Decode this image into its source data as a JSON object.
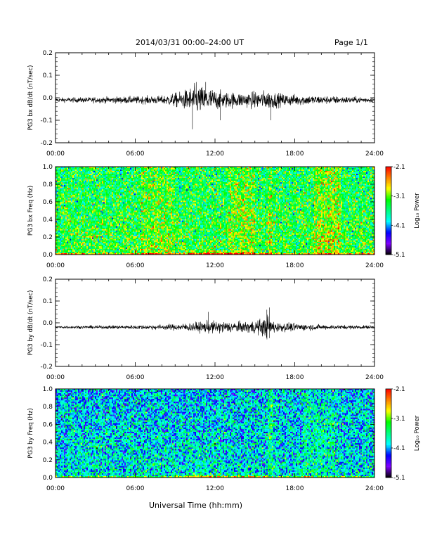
{
  "header": {
    "title": "2014/03/31  00:00–24:00 UT",
    "page": "Page 1/1"
  },
  "xlabel": "Universal Time (hh:mm)",
  "time_ticks": [
    "00:00",
    "06:00",
    "12:00",
    "18:00",
    "24:00"
  ],
  "colorbar": {
    "label": "Log₁₀ Power",
    "ticks": [
      "-2.1",
      "-3.1",
      "-4.1",
      "-5.1"
    ],
    "range": [
      -5.1,
      -2.1
    ],
    "colors": [
      "#000000",
      "#8000ff",
      "#0000ff",
      "#00ffff",
      "#00ff80",
      "#00ff00",
      "#ffff00",
      "#ff8000",
      "#ff0000"
    ]
  },
  "chart_data": [
    {
      "type": "line",
      "ylabel": "PG3 bx dB/dt (nT/sec)",
      "xlim": [
        0,
        24
      ],
      "ylim": [
        -0.2,
        0.2
      ],
      "ytick_labels": [
        "0.2",
        "0.1",
        "0.0",
        "-0.1",
        "-0.2"
      ],
      "baseline": -0.01,
      "envelope": [
        [
          0,
          0.01
        ],
        [
          4,
          0.015
        ],
        [
          8,
          0.02
        ],
        [
          9.5,
          0.04
        ],
        [
          10.5,
          0.07
        ],
        [
          11.5,
          0.06
        ],
        [
          12.5,
          0.04
        ],
        [
          14,
          0.035
        ],
        [
          16,
          0.045
        ],
        [
          17,
          0.03
        ],
        [
          20,
          0.02
        ],
        [
          24,
          0.012
        ]
      ],
      "spikes": [
        [
          10.3,
          -0.14
        ],
        [
          10.6,
          0.07
        ],
        [
          12.4,
          -0.1
        ],
        [
          16.2,
          -0.1
        ],
        [
          11.3,
          0.07
        ]
      ]
    },
    {
      "type": "heatmap",
      "ylabel": "PG3 bx Freq (Hz)",
      "xlim": [
        0,
        24
      ],
      "ylim": [
        0,
        1
      ],
      "ytick_labels": [
        "1.0",
        "0.8",
        "0.6",
        "0.4",
        "0.2",
        "0.0"
      ],
      "background_level": -3.3,
      "bright_bands": [
        [
          6.5,
          9,
          0.25
        ],
        [
          13,
          15,
          0.3
        ],
        [
          16,
          16.3,
          0.35
        ],
        [
          19.5,
          21.5,
          0.4
        ]
      ],
      "low_freq_enhancement": [
        [
          10,
          15,
          0.4
        ]
      ]
    },
    {
      "type": "line",
      "ylabel": "PG3 by dB/dt (nT/sec)",
      "xlim": [
        0,
        24
      ],
      "ylim": [
        -0.2,
        0.2
      ],
      "ytick_labels": [
        "0.2",
        "0.1",
        "0.0",
        "-0.1",
        "-0.2"
      ],
      "baseline": -0.02,
      "envelope": [
        [
          0,
          0.006
        ],
        [
          4,
          0.008
        ],
        [
          8,
          0.012
        ],
        [
          10,
          0.02
        ],
        [
          11.5,
          0.03
        ],
        [
          12.5,
          0.03
        ],
        [
          14,
          0.025
        ],
        [
          15.5,
          0.04
        ],
        [
          16,
          0.06
        ],
        [
          16.5,
          0.025
        ],
        [
          20,
          0.012
        ],
        [
          24,
          0.008
        ]
      ],
      "spikes": [
        [
          15.9,
          0.06
        ],
        [
          16.1,
          0.07
        ],
        [
          16.1,
          -0.07
        ],
        [
          11.5,
          0.05
        ]
      ]
    },
    {
      "type": "heatmap",
      "ylabel": "PG3 by Freq (Hz)",
      "xlim": [
        0,
        24
      ],
      "ylim": [
        0,
        1
      ],
      "ytick_labels": [
        "1.0",
        "0.8",
        "0.6",
        "0.4",
        "0.2",
        "0.0"
      ],
      "background_level": -3.85,
      "bright_bands": [
        [
          16,
          16.4,
          0.4
        ],
        [
          18.5,
          21,
          0.2
        ]
      ],
      "low_freq_enhancement": [
        [
          9,
          16,
          0.5
        ]
      ]
    }
  ]
}
